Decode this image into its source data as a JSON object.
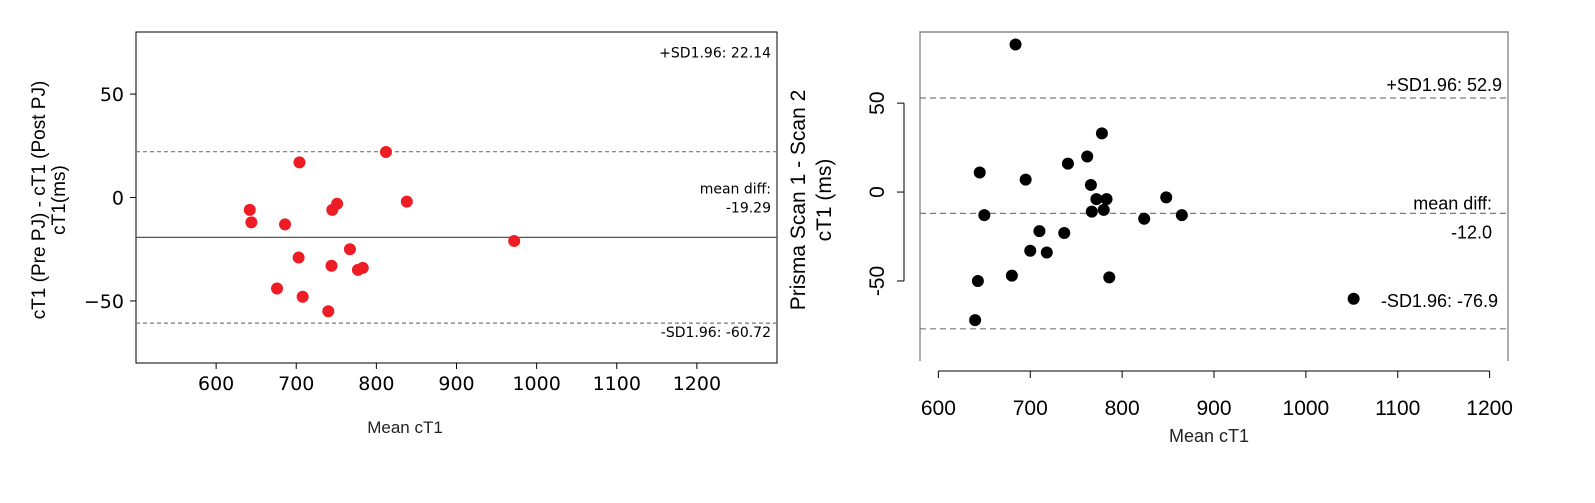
{
  "chart_data": [
    {
      "type": "scatter",
      "xlabel": "Mean cT1",
      "ylabel_lines": [
        "cT1 (Pre PJ) - cT1 (Post PJ)",
        "cT1(ms)"
      ],
      "xlim": [
        500,
        1300
      ],
      "ylim": [
        -80,
        80
      ],
      "x_ticks": [
        600,
        700,
        800,
        900,
        1000,
        1100,
        1200
      ],
      "y_ticks": [
        50,
        0,
        -50
      ],
      "y_tick_labels": [
        "50",
        "0",
        "−50"
      ],
      "grid": false,
      "point_color": "#ee1c24",
      "points": [
        {
          "x": 642,
          "y": -6
        },
        {
          "x": 644,
          "y": -12
        },
        {
          "x": 676,
          "y": -44
        },
        {
          "x": 686,
          "y": -13
        },
        {
          "x": 703,
          "y": -29
        },
        {
          "x": 704,
          "y": 17
        },
        {
          "x": 708,
          "y": -48
        },
        {
          "x": 740,
          "y": -55
        },
        {
          "x": 744,
          "y": -33
        },
        {
          "x": 745,
          "y": -6
        },
        {
          "x": 751,
          "y": -3
        },
        {
          "x": 767,
          "y": -25
        },
        {
          "x": 777,
          "y": -35
        },
        {
          "x": 783,
          "y": -34
        },
        {
          "x": 812,
          "y": 22
        },
        {
          "x": 838,
          "y": -2
        },
        {
          "x": 972,
          "y": -21
        }
      ],
      "lines": [
        {
          "y": 22.14,
          "style": "dashed",
          "label": "+SD1.96: 22.14"
        },
        {
          "y": -19.29,
          "style": "solid",
          "label_lines": [
            "mean diff:",
            "-19.29"
          ]
        },
        {
          "y": -60.72,
          "style": "dashed",
          "label": "-SD1.96: -60.72"
        }
      ]
    },
    {
      "type": "scatter",
      "xlabel": "Mean cT1",
      "ylabel_lines": [
        "Prisma Scan 1 - Scan 2",
        "cT1 (ms)"
      ],
      "xlim": [
        580,
        1220
      ],
      "ylim": [
        -95,
        90
      ],
      "x_ticks": [
        600,
        700,
        800,
        900,
        1000,
        1100,
        1200
      ],
      "y_ticks": [
        50,
        0,
        -50
      ],
      "y_tick_labels": [
        "50",
        "0",
        "-50"
      ],
      "grid": false,
      "point_color": "#000000",
      "points": [
        {
          "x": 640,
          "y": -72
        },
        {
          "x": 643,
          "y": -50
        },
        {
          "x": 645,
          "y": 11
        },
        {
          "x": 650,
          "y": -13
        },
        {
          "x": 680,
          "y": -47
        },
        {
          "x": 684,
          "y": 83
        },
        {
          "x": 695,
          "y": 7
        },
        {
          "x": 700,
          "y": -33
        },
        {
          "x": 710,
          "y": -22
        },
        {
          "x": 718,
          "y": -34
        },
        {
          "x": 737,
          "y": -23
        },
        {
          "x": 741,
          "y": 16
        },
        {
          "x": 762,
          "y": 20
        },
        {
          "x": 766,
          "y": 4
        },
        {
          "x": 767,
          "y": -11
        },
        {
          "x": 772,
          "y": -4
        },
        {
          "x": 778,
          "y": 33
        },
        {
          "x": 780,
          "y": -10
        },
        {
          "x": 783,
          "y": -4
        },
        {
          "x": 786,
          "y": -48
        },
        {
          "x": 824,
          "y": -15
        },
        {
          "x": 848,
          "y": -3
        },
        {
          "x": 865,
          "y": -13
        },
        {
          "x": 1052,
          "y": -60
        }
      ],
      "lines": [
        {
          "y": 52.9,
          "style": "dashed",
          "label": "+SD1.96: 52.9"
        },
        {
          "y": -12.0,
          "style": "dashed",
          "label_lines": [
            "mean diff:",
            "-12.0"
          ]
        },
        {
          "y": -76.9,
          "style": "dashed",
          "label": "-SD1.96: -76.9"
        }
      ]
    }
  ]
}
